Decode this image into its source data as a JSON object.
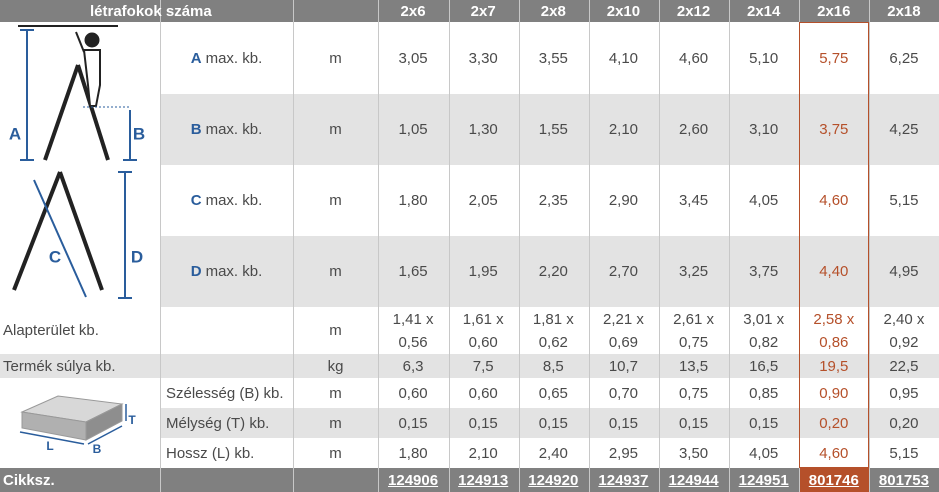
{
  "header": {
    "title": "létrafokok száma",
    "columns": [
      "2x6",
      "2x7",
      "2x8",
      "2x10",
      "2x12",
      "2x14",
      "2x16",
      "2x18"
    ]
  },
  "diagram_labels": {
    "ladder_height": [
      "A",
      "B"
    ],
    "ladder_length": [
      "C",
      "D"
    ],
    "box": [
      "T",
      "L",
      "B"
    ]
  },
  "dimension_rows": [
    {
      "letter": "A",
      "label": "max. kb.",
      "unit": "m",
      "values": [
        "3,05",
        "3,30",
        "3,55",
        "4,10",
        "4,60",
        "5,10",
        "5,75",
        "6,25"
      ]
    },
    {
      "letter": "B",
      "label": "max. kb.",
      "unit": "m",
      "values": [
        "1,05",
        "1,30",
        "1,55",
        "2,10",
        "2,60",
        "3,10",
        "3,75",
        "4,25"
      ]
    },
    {
      "letter": "C",
      "label": "max. kb.",
      "unit": "m",
      "values": [
        "1,80",
        "2,05",
        "2,35",
        "2,90",
        "3,45",
        "4,05",
        "4,60",
        "5,15"
      ]
    },
    {
      "letter": "D",
      "label": "max. kb.",
      "unit": "m",
      "values": [
        "1,65",
        "1,95",
        "2,20",
        "2,70",
        "3,25",
        "3,75",
        "4,40",
        "4,95"
      ]
    }
  ],
  "area_row": {
    "label": "Alapterület kb.",
    "unit": "m",
    "values": [
      [
        "1,41 x",
        "0,56"
      ],
      [
        "1,61 x",
        "0,60"
      ],
      [
        "1,81 x",
        "0,62"
      ],
      [
        "2,21 x",
        "0,69"
      ],
      [
        "2,61 x",
        "0,75"
      ],
      [
        "3,01 x",
        "0,82"
      ],
      [
        "2,58 x",
        "0,86"
      ],
      [
        "2,40 x",
        "0,92"
      ]
    ]
  },
  "weight_row": {
    "label": "Termék súlya kb.",
    "unit": "kg",
    "values": [
      "6,3",
      "7,5",
      "8,5",
      "10,7",
      "13,5",
      "16,5",
      "19,5",
      "22,5"
    ]
  },
  "package_rows": [
    {
      "label": "Szélesség (B) kb.",
      "unit": "m",
      "values": [
        "0,60",
        "0,60",
        "0,65",
        "0,70",
        "0,75",
        "0,85",
        "0,90",
        "0,95"
      ]
    },
    {
      "label": "Mélység (T) kb.",
      "unit": "m",
      "values": [
        "0,15",
        "0,15",
        "0,15",
        "0,15",
        "0,15",
        "0,15",
        "0,20",
        "0,20"
      ]
    },
    {
      "label": "Hossz (L) kb.",
      "unit": "m",
      "values": [
        "1,80",
        "2,10",
        "2,40",
        "2,95",
        "3,50",
        "4,05",
        "4,60",
        "5,15"
      ]
    }
  ],
  "footer": {
    "label": "Cikksz.",
    "values": [
      "124906",
      "124913",
      "124920",
      "124937",
      "124944",
      "124951",
      "801746",
      "801753"
    ]
  }
}
